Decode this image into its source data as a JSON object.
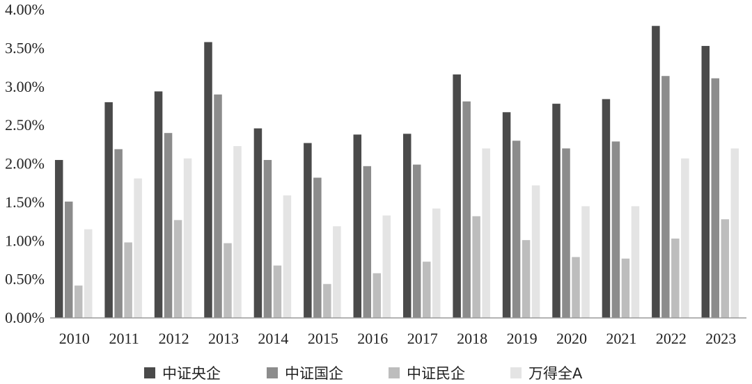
{
  "chart_data": {
    "type": "bar",
    "title": "",
    "xlabel": "",
    "ylabel": "",
    "ylim": [
      0,
      4.0
    ],
    "y_ticks": [
      "0.00%",
      "0.50%",
      "1.00%",
      "1.50%",
      "2.00%",
      "2.50%",
      "3.00%",
      "3.50%",
      "4.00%"
    ],
    "categories": [
      "2010",
      "2011",
      "2012",
      "2013",
      "2014",
      "2015",
      "2016",
      "2017",
      "2018",
      "2019",
      "2020",
      "2021",
      "2022",
      "2023"
    ],
    "series": [
      {
        "name": "中证央企",
        "color": "#4a4a4a",
        "values": [
          2.05,
          2.8,
          2.94,
          3.58,
          2.46,
          2.27,
          2.38,
          2.39,
          3.16,
          2.67,
          2.78,
          2.84,
          3.79,
          3.53
        ]
      },
      {
        "name": "中证国企",
        "color": "#8c8c8c",
        "values": [
          1.51,
          2.19,
          2.4,
          2.9,
          2.05,
          1.82,
          1.97,
          1.99,
          2.81,
          2.3,
          2.2,
          2.29,
          3.14,
          3.11
        ]
      },
      {
        "name": "中证民企",
        "color": "#bdbdbd",
        "values": [
          0.42,
          0.98,
          1.27,
          0.97,
          0.68,
          0.44,
          0.58,
          0.73,
          1.32,
          1.01,
          0.79,
          0.77,
          1.03,
          1.28
        ]
      },
      {
        "name": "万得全A",
        "color": "#e4e4e4",
        "values": [
          1.15,
          1.81,
          2.07,
          2.23,
          1.59,
          1.19,
          1.33,
          1.42,
          2.2,
          1.72,
          1.45,
          1.45,
          2.07,
          2.2
        ]
      }
    ],
    "grid": false,
    "legend": "bottom"
  }
}
